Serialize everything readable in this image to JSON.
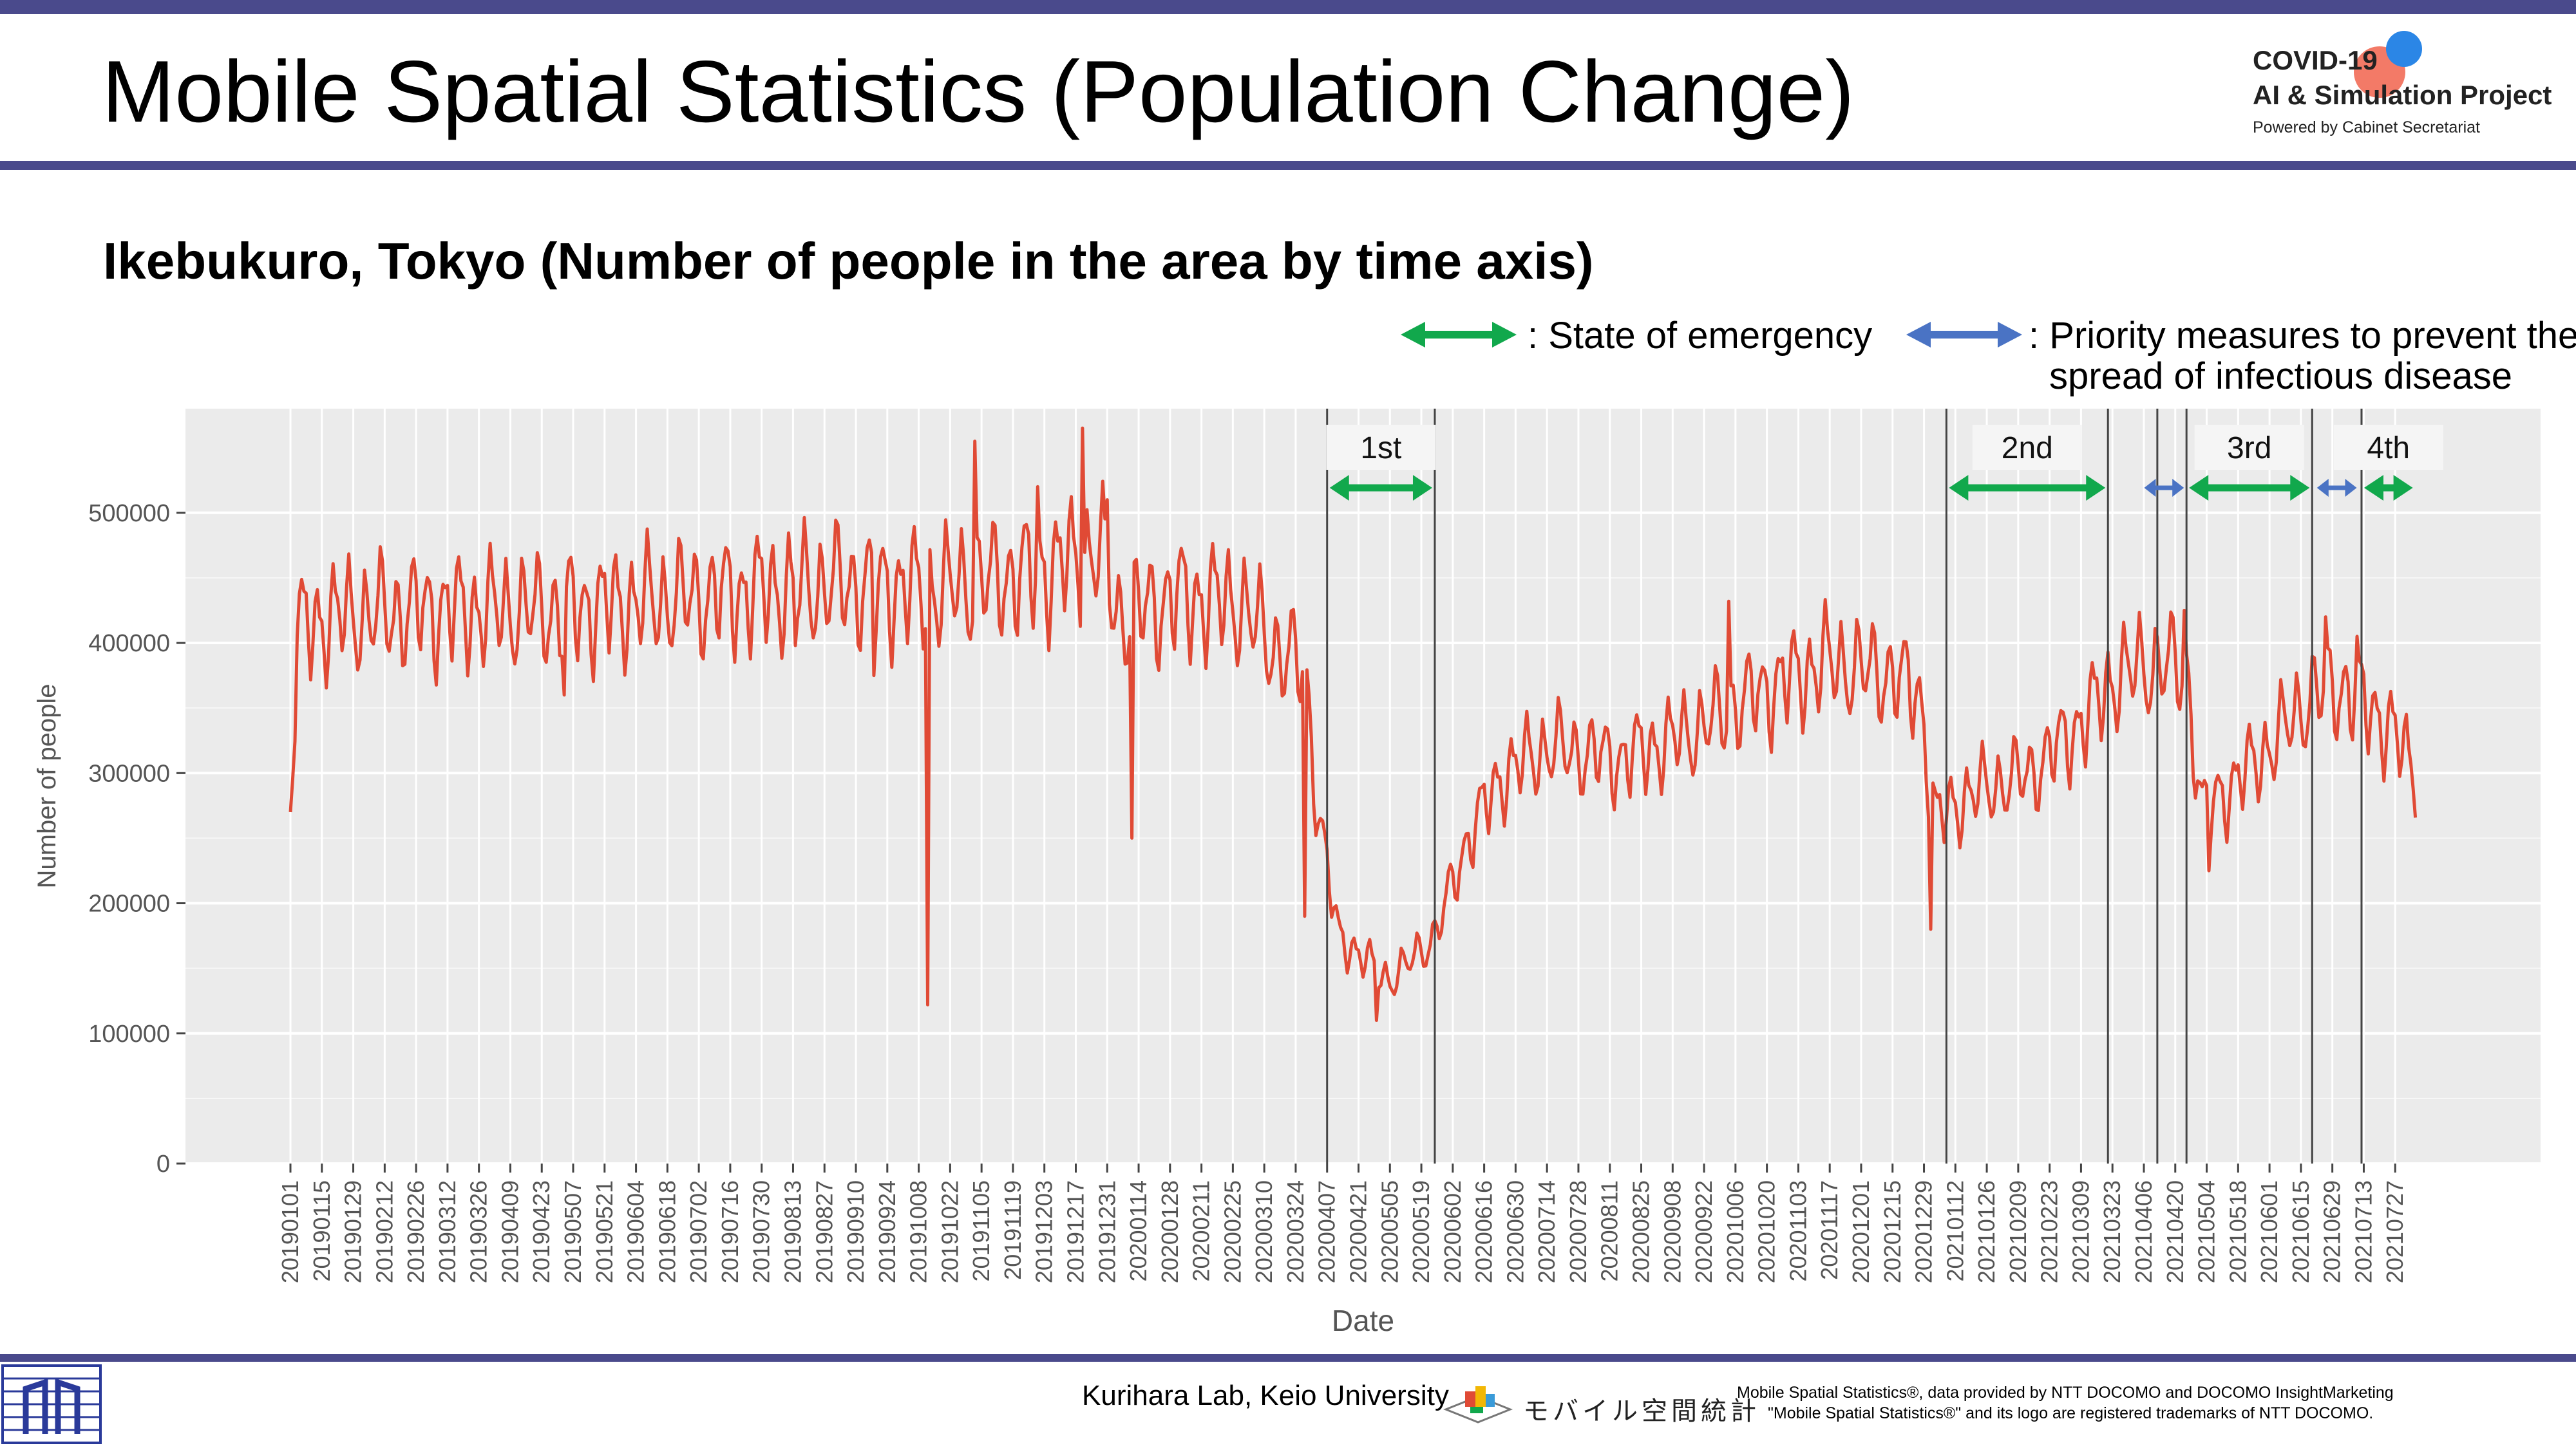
{
  "header": {
    "title": "Mobile Spatial Statistics (Population Change)",
    "logo_line1": "COVID-19",
    "logo_line2": "AI & Simulation Project",
    "logo_line3": "Powered by Cabinet Secretariat"
  },
  "subtitle": "Ikebukuro, Tokyo (Number of people in the area by time axis)",
  "legend": {
    "emergency_label": ": State of emergency",
    "priority_label_1": ": Priority measures to prevent the",
    "priority_label_2": "spread of infectious disease",
    "emergency_color": "#11a84c",
    "priority_color": "#4a73c4"
  },
  "footer": {
    "lab": "Kurihara Lab, Keio University",
    "mss_logo_text": "モバイル空間統計",
    "note1": "Mobile Spatial Statistics®, data provided by NTT DOCOMO and DOCOMO InsightMarketing",
    "note2": "\"Mobile Spatial Statistics®\" and its logo are registered trademarks of NTT DOCOMO."
  },
  "colors": {
    "header_bar": "#4a4a8c",
    "series_line": "#e04a35",
    "panel_bg": "#ebebeb",
    "grid": "#ffffff"
  },
  "chart_data": {
    "type": "line",
    "title": "",
    "xlabel": "Date",
    "ylabel": "Number of people",
    "ylim": [
      0,
      580000
    ],
    "yticks": [
      0,
      100000,
      200000,
      300000,
      400000,
      500000
    ],
    "ytick_labels": [
      "0",
      "100000",
      "200000",
      "300000",
      "400000",
      "500000"
    ],
    "xlim": [
      "2019-01-01",
      "2021-08-10"
    ],
    "xtick_labels": [
      "20190101",
      "20190115",
      "20190129",
      "20190212",
      "20190226",
      "20190312",
      "20190326",
      "20190409",
      "20190423",
      "20190507",
      "20190521",
      "20190604",
      "20190618",
      "20190702",
      "20190716",
      "20190730",
      "20190813",
      "20190827",
      "20190910",
      "20190924",
      "20191008",
      "20191022",
      "20191105",
      "20191119",
      "20191203",
      "20191217",
      "20191231",
      "20200114",
      "20200128",
      "20200211",
      "20200225",
      "20200310",
      "20200324",
      "20200407",
      "20200421",
      "20200505",
      "20200519",
      "20200602",
      "20200616",
      "20200630",
      "20200714",
      "20200728",
      "20200811",
      "20200825",
      "20200908",
      "20200922",
      "20201006",
      "20201020",
      "20201103",
      "20201117",
      "20201201",
      "20201215",
      "20201229",
      "20210112",
      "20210126",
      "20210209",
      "20210223",
      "20210309",
      "20210323",
      "20210406",
      "20210420",
      "20210504",
      "20210518",
      "20210601",
      "20210615",
      "20210629",
      "20210713",
      "20210727"
    ],
    "grid": true,
    "legend": "top-right",
    "trend": [
      [
        "2019-01-01",
        270000
      ],
      [
        "2019-01-04",
        410000
      ],
      [
        "2019-01-20",
        420000
      ],
      [
        "2019-03-01",
        425000
      ],
      [
        "2019-05-01",
        425000
      ],
      [
        "2019-07-01",
        435000
      ],
      [
        "2019-09-01",
        445000
      ],
      [
        "2019-10-15",
        440000
      ],
      [
        "2019-12-01",
        455000
      ],
      [
        "2019-12-28",
        470000
      ],
      [
        "2020-01-05",
        420000
      ],
      [
        "2020-02-01",
        435000
      ],
      [
        "2020-02-28",
        430000
      ],
      [
        "2020-03-15",
        395000
      ],
      [
        "2020-03-28",
        380000
      ],
      [
        "2020-04-03",
        270000
      ],
      [
        "2020-04-12",
        175000
      ],
      [
        "2020-05-05",
        140000
      ],
      [
        "2020-05-25",
        175000
      ],
      [
        "2020-06-10",
        255000
      ],
      [
        "2020-06-25",
        300000
      ],
      [
        "2020-07-15",
        320000
      ],
      [
        "2020-08-15",
        310000
      ],
      [
        "2020-09-15",
        330000
      ],
      [
        "2020-10-15",
        360000
      ],
      [
        "2020-11-15",
        385000
      ],
      [
        "2020-12-15",
        375000
      ],
      [
        "2020-12-27",
        360000
      ],
      [
        "2021-01-03",
        265000
      ],
      [
        "2021-01-20",
        285000
      ],
      [
        "2021-02-15",
        300000
      ],
      [
        "2021-03-10",
        340000
      ],
      [
        "2021-03-25",
        375000
      ],
      [
        "2021-04-15",
        385000
      ],
      [
        "2021-04-25",
        375000
      ],
      [
        "2021-05-02",
        270000
      ],
      [
        "2021-05-15",
        290000
      ],
      [
        "2021-06-01",
        320000
      ],
      [
        "2021-06-20",
        360000
      ],
      [
        "2021-07-05",
        365000
      ],
      [
        "2021-07-25",
        335000
      ],
      [
        "2021-08-05",
        300000
      ]
    ],
    "weekly_amplitude": 38000,
    "spikes": [
      [
        "2019-05-03",
        360000
      ],
      [
        "2019-08-14",
        398000
      ],
      [
        "2019-09-18",
        375000
      ],
      [
        "2019-10-12",
        122000
      ],
      [
        "2019-11-02",
        555000
      ],
      [
        "2019-11-30",
        520000
      ],
      [
        "2019-12-20",
        565000
      ],
      [
        "2019-12-31",
        510000
      ],
      [
        "2020-01-11",
        250000
      ],
      [
        "2020-03-28",
        190000
      ],
      [
        "2020-04-29",
        110000
      ],
      [
        "2020-10-03",
        432000
      ],
      [
        "2021-01-01",
        180000
      ],
      [
        "2021-04-24",
        425000
      ],
      [
        "2021-05-05",
        225000
      ],
      [
        "2021-06-26",
        420000
      ],
      [
        "2021-07-10",
        405000
      ]
    ],
    "period_dividers": [
      "2020-04-07",
      "2020-05-25",
      "2021-01-08",
      "2021-03-21",
      "2021-04-12",
      "2021-04-25",
      "2021-06-20",
      "2021-07-12"
    ],
    "periods": [
      {
        "label": "1st",
        "start": "2020-04-07",
        "end": "2020-05-25",
        "kind": "emergency"
      },
      {
        "label": "2nd",
        "start": "2021-01-08",
        "end": "2021-03-21",
        "kind": "emergency"
      },
      {
        "label": "",
        "start": "2021-04-05",
        "end": "2021-04-25",
        "kind": "priority"
      },
      {
        "label": "3rd",
        "start": "2021-04-25",
        "end": "2021-06-20",
        "kind": "emergency"
      },
      {
        "label": "",
        "start": "2021-06-21",
        "end": "2021-07-11",
        "kind": "priority"
      },
      {
        "label": "4th",
        "start": "2021-07-12",
        "end": "2021-08-05",
        "kind": "emergency"
      }
    ]
  }
}
